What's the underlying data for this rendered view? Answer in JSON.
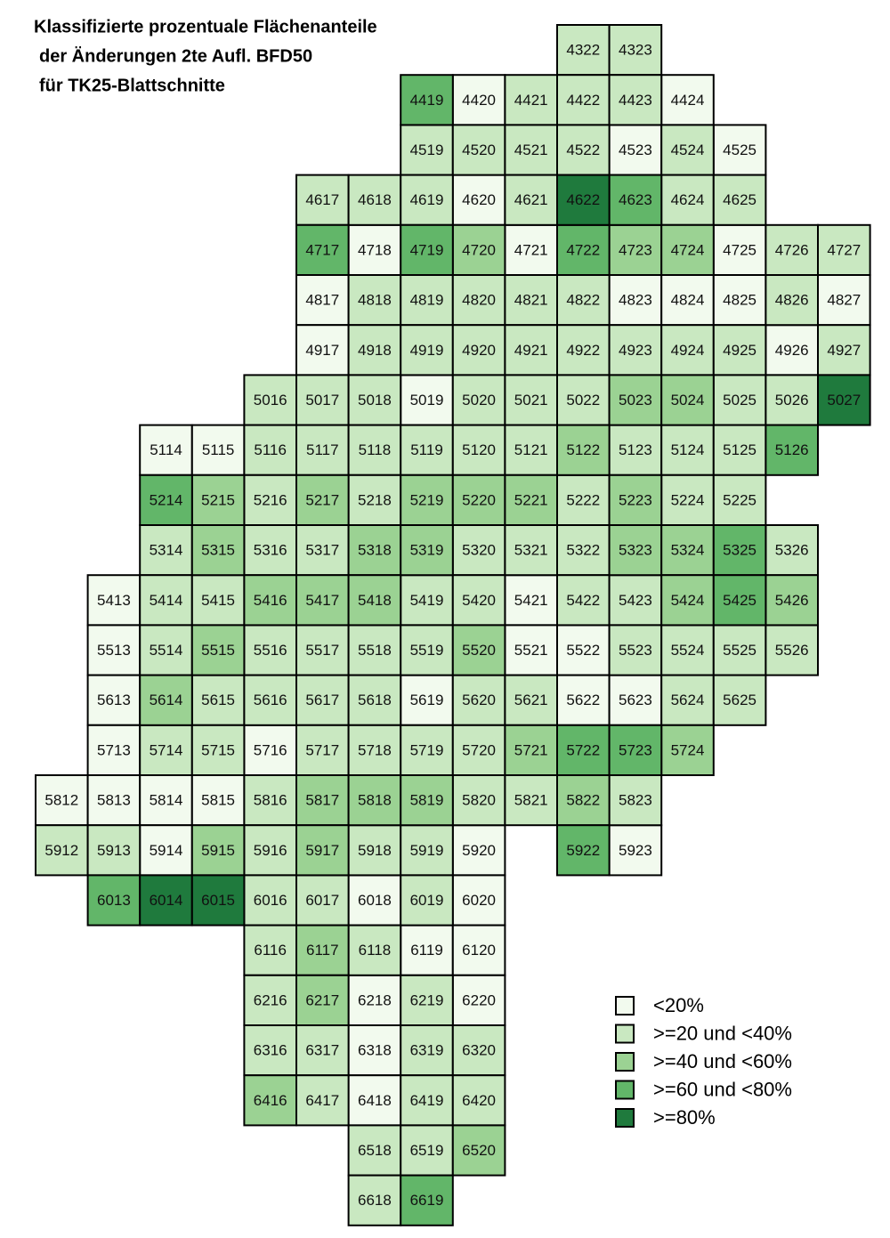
{
  "title": [
    "Klassifizierte prozentuale Flächenanteile",
    "der Änderungen 2te Aufl. BFD50",
    "für TK25-Blattschnitte"
  ],
  "legend": {
    "items": [
      {
        "label": "<20%",
        "color": "#f2faee",
        "sheets": [
          "4420",
          "4424",
          "4523",
          "4525",
          "4620",
          "4718",
          "4721",
          "4725",
          "4817",
          "4823",
          "4824",
          "4825",
          "4827",
          "4917",
          "4926",
          "5019",
          "5114",
          "5115",
          "5413",
          "5421",
          "5513",
          "5521",
          "5522",
          "5613",
          "5619",
          "5622",
          "5623",
          "5713",
          "5716",
          "5812",
          "5813",
          "5814",
          "5815",
          "5914",
          "5920",
          "5923",
          "6018",
          "6020",
          "6119",
          "6120",
          "6218",
          "6220",
          "6318",
          "6418"
        ]
      },
      {
        "label": ">=20 und <40%",
        "color": "#c9e8c1",
        "sheets": [
          "4322",
          "4323",
          "4421",
          "4422",
          "4423",
          "4519",
          "4520",
          "4521",
          "4522",
          "4524",
          "4617",
          "4618",
          "4619",
          "4621",
          "4624",
          "4625",
          "4726",
          "4727",
          "4818",
          "4819",
          "4820",
          "4821",
          "4822",
          "4826",
          "4918",
          "4919",
          "4920",
          "4921",
          "4922",
          "4923",
          "4924",
          "4925",
          "4927",
          "5016",
          "5017",
          "5018",
          "5020",
          "5021",
          "5022",
          "5025",
          "5026",
          "5116",
          "5117",
          "5118",
          "5119",
          "5120",
          "5121",
          "5123",
          "5124",
          "5125",
          "5216",
          "5218",
          "5222",
          "5224",
          "5225",
          "5314",
          "5316",
          "5317",
          "5320",
          "5321",
          "5322",
          "5326",
          "5414",
          "5415",
          "5419",
          "5420",
          "5422",
          "5423",
          "5514",
          "5516",
          "5517",
          "5518",
          "5519",
          "5523",
          "5524",
          "5525",
          "5526",
          "5615",
          "5616",
          "5617",
          "5618",
          "5620",
          "5621",
          "5624",
          "5625",
          "5714",
          "5715",
          "5717",
          "5718",
          "5719",
          "5720",
          "5816",
          "5820",
          "5821",
          "5823",
          "5912",
          "5913",
          "5916",
          "5918",
          "5919",
          "6016",
          "6017",
          "6019",
          "6116",
          "6118",
          "6216",
          "6219",
          "6316",
          "6317",
          "6319",
          "6320",
          "6417",
          "6419",
          "6420",
          "6518",
          "6519",
          "6618"
        ]
      },
      {
        "label": ">=40 und <60%",
        "color": "#9bd293",
        "sheets": [
          "4720",
          "4723",
          "4724",
          "5023",
          "5024",
          "5122",
          "5215",
          "5217",
          "5219",
          "5220",
          "5221",
          "5223",
          "5315",
          "5318",
          "5319",
          "5323",
          "5324",
          "5416",
          "5417",
          "5418",
          "5424",
          "5426",
          "5515",
          "5520",
          "5614",
          "5721",
          "5724",
          "5817",
          "5818",
          "5819",
          "5822",
          "5915",
          "5917",
          "6117",
          "6217",
          "6416",
          "6520"
        ]
      },
      {
        "label": ">=60 und <80%",
        "color": "#62b669",
        "sheets": [
          "4419",
          "4623",
          "4717",
          "4719",
          "4722",
          "5126",
          "5214",
          "5325",
          "5425",
          "5722",
          "5723",
          "5922",
          "6013",
          "6619"
        ]
      },
      {
        "label": ">=80%",
        "color": "#1f7a3d",
        "sheets": [
          "4622",
          "5027",
          "6014",
          "6015"
        ]
      }
    ]
  }
}
